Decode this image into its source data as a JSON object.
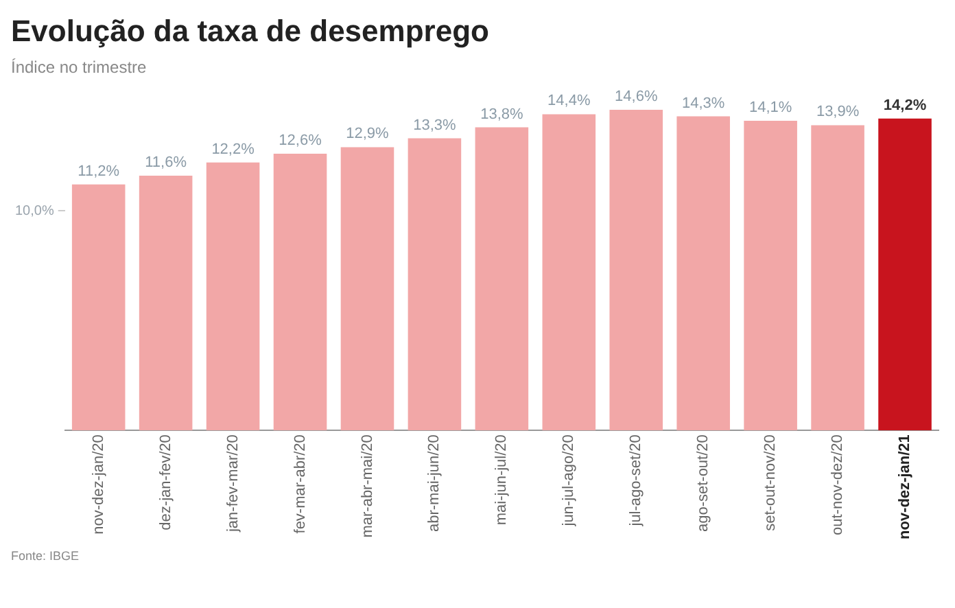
{
  "chart_data": {
    "type": "bar",
    "title": "Evolução da taxa de desemprego",
    "subtitle": "Índice no trimestre",
    "categories": [
      "nov-dez-jan/20",
      "dez-jan-fev/20",
      "jan-fev-mar/20",
      "fev-mar-abr/20",
      "mar-abr-mai/20",
      "abr-mai-jun/20",
      "mai-jun-jul/20",
      "jun-jul-ago/20",
      "jul-ago-set/20",
      "ago-set-out/20",
      "set-out-nov/20",
      "out-nov-dez/20",
      "nov-dez-jan/21"
    ],
    "values": [
      11.2,
      11.6,
      12.2,
      12.6,
      12.9,
      13.3,
      13.8,
      14.4,
      14.6,
      14.3,
      14.1,
      13.9,
      14.2
    ],
    "value_labels": [
      "11,2%",
      "11,6%",
      "12,2%",
      "12,6%",
      "12,9%",
      "13,3%",
      "13,8%",
      "14,4%",
      "14,6%",
      "14,3%",
      "14,1%",
      "13,9%",
      "14,2%"
    ],
    "colors": [
      "#f2a7a7",
      "#f2a7a7",
      "#f2a7a7",
      "#f2a7a7",
      "#f2a7a7",
      "#f2a7a7",
      "#f2a7a7",
      "#f2a7a7",
      "#f2a7a7",
      "#f2a7a7",
      "#f2a7a7",
      "#f2a7a7",
      "#c8141e"
    ],
    "ylim": [
      0,
      14.6
    ],
    "yticks": [
      {
        "value": 10,
        "label": "10,0%"
      }
    ],
    "grid": false,
    "legend": false,
    "annotations": [
      "Fonte: IBGE"
    ]
  }
}
